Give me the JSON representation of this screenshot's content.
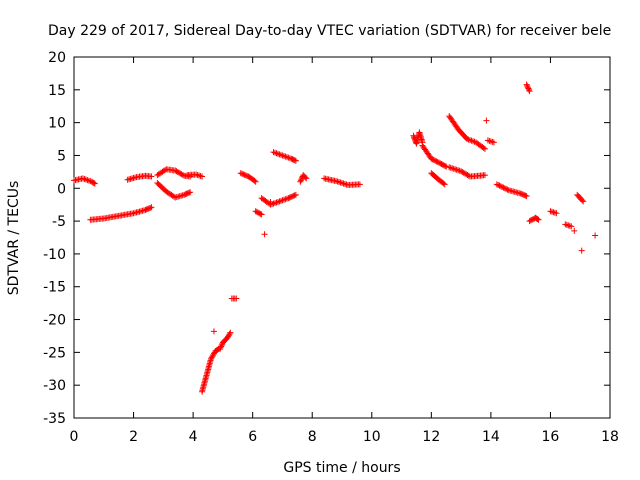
{
  "chart_data": {
    "type": "scatter",
    "title": "Day 229 of 2017, Sidereal Day-to-day VTEC variation (SDTVAR) for receiver bele",
    "xlabel": "GPS time / hours",
    "ylabel": "SDTVAR / TECUs",
    "xlim": [
      0,
      18
    ],
    "ylim": [
      -35,
      20
    ],
    "xticks": [
      "0",
      "2",
      "4",
      "6",
      "8",
      "10",
      "12",
      "14",
      "16",
      "18"
    ],
    "yticks": [
      "20",
      "15",
      "10",
      "5",
      "0",
      "-5",
      "-10",
      "-15",
      "-20",
      "-25",
      "-30",
      "-35"
    ],
    "grid": false,
    "marker": "+",
    "series": [
      {
        "name": "SDTVAR",
        "color": "#ff0000",
        "segments": [
          [
            [
              0.0,
              1.2
            ],
            [
              0.3,
              1.5
            ],
            [
              0.6,
              1.0
            ],
            [
              0.7,
              0.7
            ]
          ],
          [
            [
              0.55,
              -4.8
            ],
            [
              1.0,
              -4.6
            ],
            [
              1.5,
              -4.2
            ],
            [
              2.0,
              -3.8
            ],
            [
              2.4,
              -3.3
            ],
            [
              2.6,
              -2.9
            ]
          ],
          [
            [
              1.8,
              1.3
            ],
            [
              2.1,
              1.7
            ],
            [
              2.4,
              1.9
            ],
            [
              2.6,
              1.8
            ]
          ],
          [
            [
              2.8,
              2.0
            ],
            [
              3.1,
              2.9
            ],
            [
              3.4,
              2.7
            ],
            [
              3.7,
              1.9
            ],
            [
              3.9,
              1.8
            ]
          ],
          [
            [
              2.8,
              0.8
            ],
            [
              3.1,
              -0.5
            ],
            [
              3.4,
              -1.4
            ],
            [
              3.7,
              -1.0
            ],
            [
              3.9,
              -0.6
            ]
          ],
          [
            [
              3.8,
              2.0
            ],
            [
              4.1,
              2.1
            ],
            [
              4.3,
              1.8
            ]
          ],
          [
            [
              4.3,
              -31.0
            ],
            [
              4.45,
              -28.5
            ],
            [
              4.6,
              -26.0
            ],
            [
              4.75,
              -24.8
            ],
            [
              4.85,
              -24.5
            ]
          ],
          [
            [
              4.9,
              -24.5
            ],
            [
              5.0,
              -23.5
            ],
            [
              5.15,
              -22.8
            ],
            [
              5.25,
              -22.0
            ]
          ],
          [
            [
              5.3,
              -16.8
            ],
            [
              5.45,
              -16.8
            ]
          ],
          [
            [
              5.6,
              2.3
            ],
            [
              5.9,
              1.7
            ],
            [
              6.1,
              1.0
            ]
          ],
          [
            [
              6.1,
              -3.5
            ],
            [
              6.3,
              -4.0
            ]
          ],
          [
            [
              6.3,
              -1.5
            ],
            [
              6.6,
              -2.5
            ],
            [
              6.9,
              -2.0
            ],
            [
              7.2,
              -1.5
            ],
            [
              7.45,
              -1.0
            ]
          ],
          [
            [
              6.7,
              5.5
            ],
            [
              7.0,
              5.0
            ],
            [
              7.3,
              4.5
            ],
            [
              7.45,
              4.2
            ]
          ],
          [
            [
              7.6,
              1.0
            ],
            [
              7.7,
              2.0
            ],
            [
              7.8,
              1.5
            ]
          ],
          [
            [
              8.4,
              1.5
            ],
            [
              8.8,
              1.1
            ],
            [
              9.2,
              0.5
            ],
            [
              9.6,
              0.6
            ]
          ],
          [
            [
              11.4,
              8.0
            ],
            [
              11.5,
              6.8
            ],
            [
              11.6,
              8.5
            ],
            [
              11.7,
              7.0
            ]
          ],
          [
            [
              11.7,
              6.5
            ],
            [
              12.0,
              4.5
            ],
            [
              12.3,
              3.8
            ],
            [
              12.5,
              3.3
            ]
          ],
          [
            [
              12.0,
              2.3
            ],
            [
              12.25,
              1.3
            ],
            [
              12.45,
              0.6
            ]
          ],
          [
            [
              12.6,
              11.0
            ],
            [
              12.9,
              9.0
            ],
            [
              13.2,
              7.5
            ],
            [
              13.5,
              7.0
            ],
            [
              13.8,
              6.0
            ]
          ],
          [
            [
              12.6,
              3.2
            ],
            [
              13.0,
              2.6
            ],
            [
              13.3,
              1.8
            ],
            [
              13.6,
              1.9
            ],
            [
              13.8,
              2.0
            ]
          ],
          [
            [
              13.9,
              7.3
            ],
            [
              14.1,
              7.0
            ]
          ],
          [
            [
              14.2,
              0.6
            ],
            [
              14.6,
              -0.3
            ],
            [
              15.0,
              -0.8
            ],
            [
              15.2,
              -1.2
            ]
          ],
          [
            [
              15.2,
              15.8
            ],
            [
              15.3,
              14.8
            ]
          ],
          [
            [
              15.3,
              -5.0
            ],
            [
              15.5,
              -4.5
            ],
            [
              15.6,
              -4.8
            ]
          ],
          [
            [
              16.0,
              -3.5
            ],
            [
              16.2,
              -3.8
            ]
          ],
          [
            [
              16.5,
              -5.5
            ],
            [
              16.7,
              -5.8
            ]
          ],
          [
            [
              16.9,
              -1.0
            ],
            [
              17.1,
              -2.0
            ]
          ]
        ],
        "points": [
          [
            4.7,
            -21.8
          ],
          [
            6.6,
            -2.1
          ],
          [
            6.4,
            -7.0
          ],
          [
            13.85,
            10.3
          ],
          [
            16.8,
            -6.5
          ],
          [
            17.05,
            -9.5
          ],
          [
            17.5,
            -7.2
          ]
        ]
      }
    ]
  }
}
